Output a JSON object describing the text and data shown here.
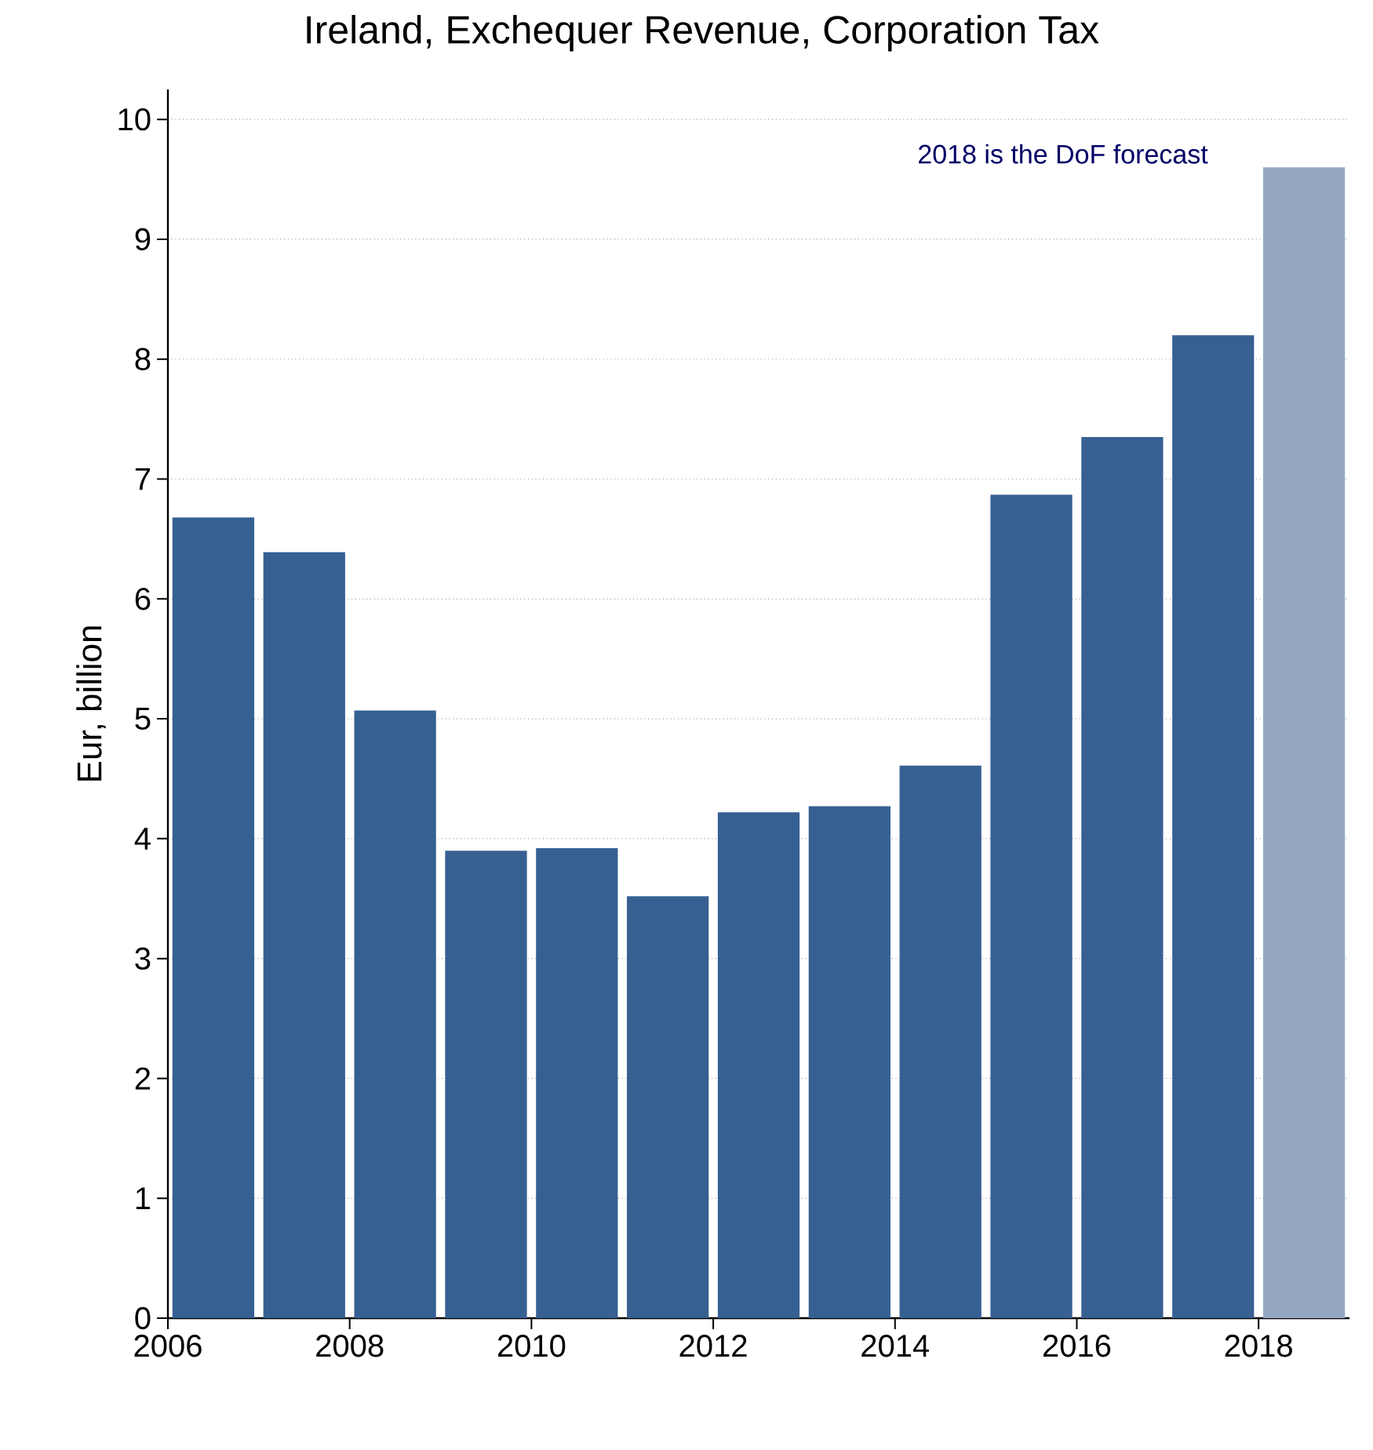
{
  "chart_data": {
    "type": "bar",
    "title": "Ireland, Exchequer Revenue, Corporation Tax",
    "ylabel": "Eur, billion",
    "x": [
      2006.5,
      2007.5,
      2008.5,
      2009.5,
      2010.5,
      2011.5,
      2012.5,
      2013.5,
      2014.5,
      2015.5,
      2016.5,
      2017.5,
      2018.5
    ],
    "values": [
      6.68,
      6.39,
      5.07,
      3.9,
      3.92,
      3.52,
      4.22,
      4.27,
      4.61,
      6.87,
      7.35,
      8.2,
      9.6
    ],
    "colors": [
      "#376092",
      "#376092",
      "#376092",
      "#376092",
      "#376092",
      "#376092",
      "#376092",
      "#376092",
      "#376092",
      "#376092",
      "#376092",
      "#376092",
      "#93a7c1"
    ],
    "xlim": [
      2006,
      2019
    ],
    "xticks": [
      2006,
      2008,
      2010,
      2012,
      2014,
      2016,
      2018
    ],
    "ylim": [
      0,
      10.25
    ],
    "yticks": [
      0,
      1,
      2,
      3,
      4,
      5,
      6,
      7,
      8,
      9,
      10
    ],
    "grid": "y",
    "annotations": [
      "2018 is the DoF forecast"
    ]
  }
}
